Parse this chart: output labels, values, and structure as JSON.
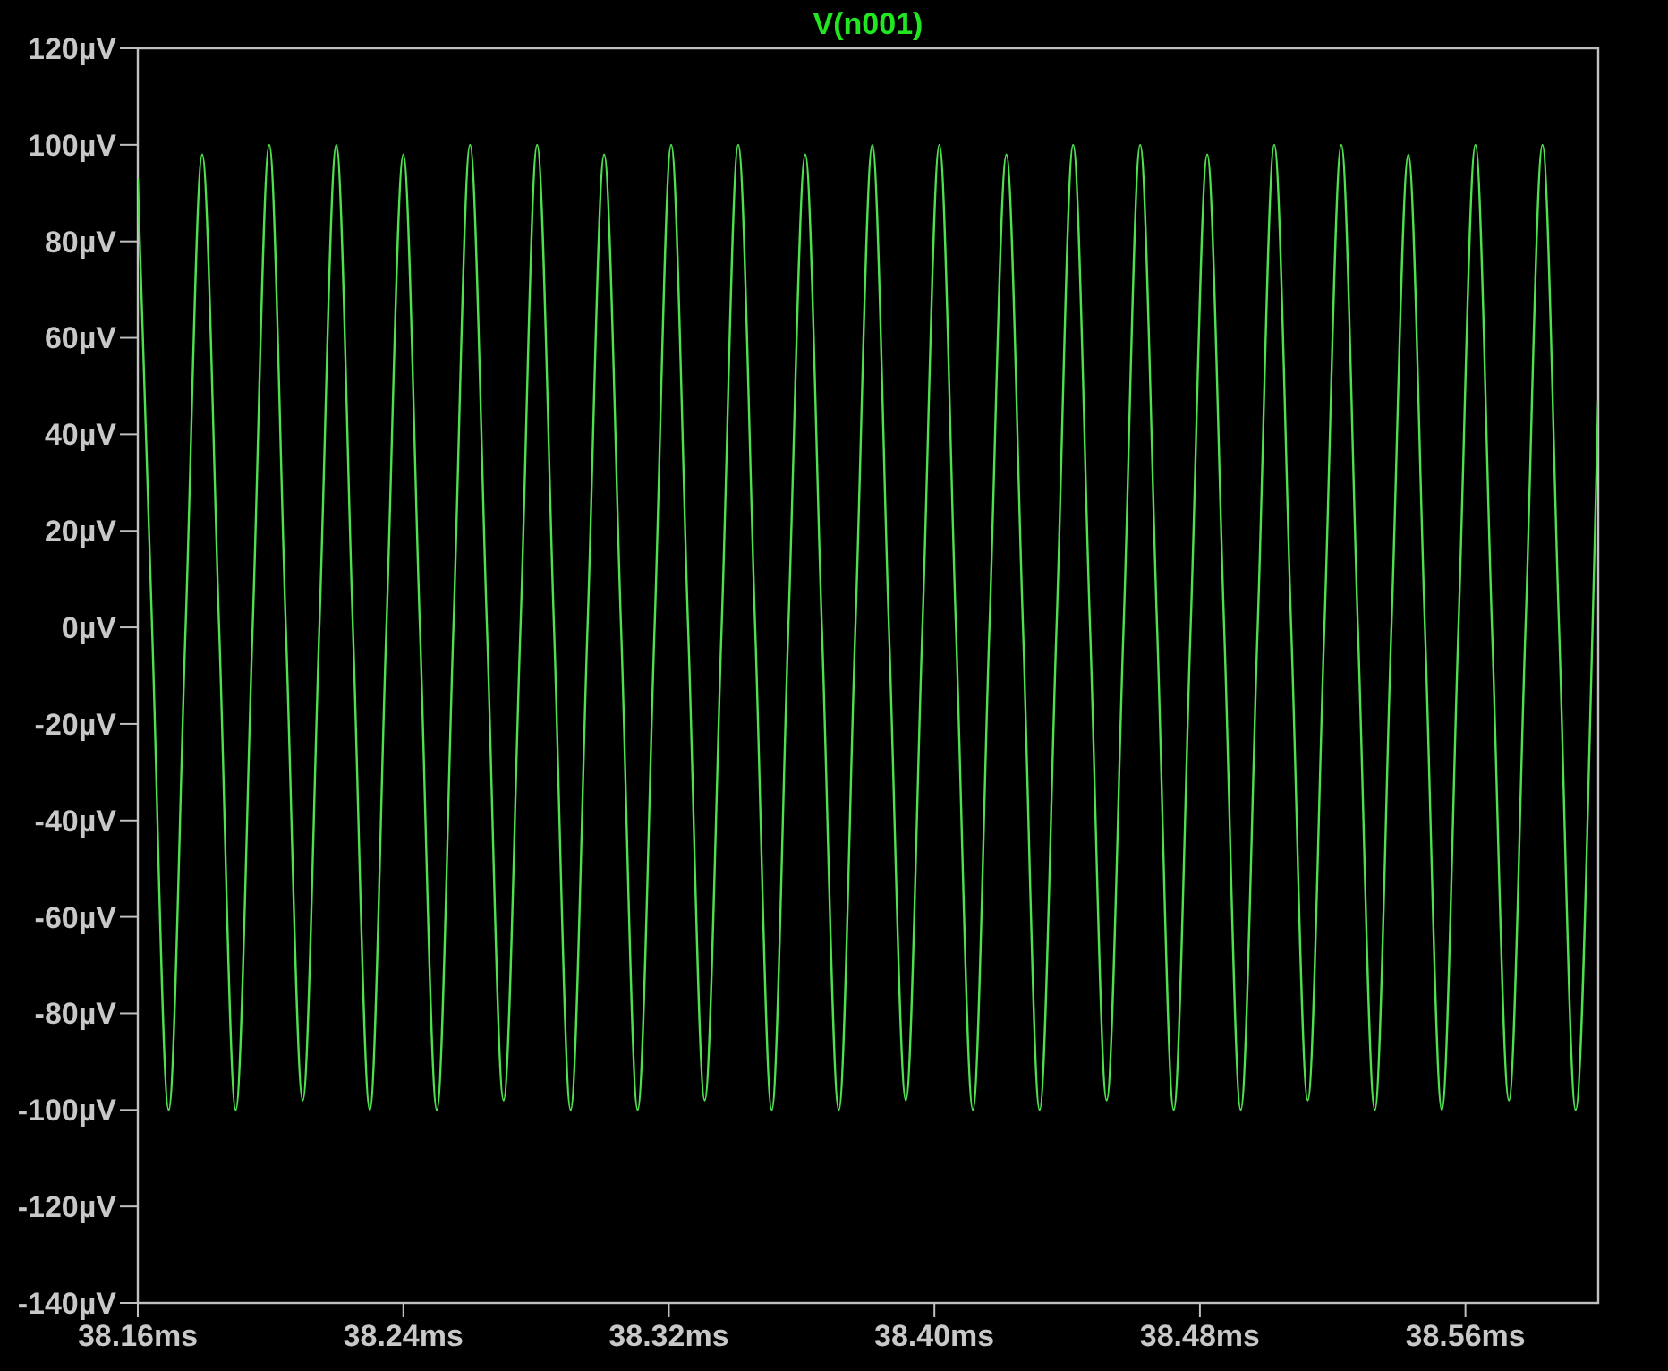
{
  "chart_data": {
    "type": "line",
    "title": "V(n001)",
    "xlim": [
      38.16,
      38.6
    ],
    "ylim": [
      -140,
      120
    ],
    "xticks": [
      {
        "value": 38.16,
        "label": "38.16ms"
      },
      {
        "value": 38.24,
        "label": "38.24ms"
      },
      {
        "value": 38.32,
        "label": "38.32ms"
      },
      {
        "value": 38.4,
        "label": "38.40ms"
      },
      {
        "value": 38.48,
        "label": "38.48ms"
      },
      {
        "value": 38.56,
        "label": "38.56ms"
      }
    ],
    "yticks": [
      {
        "value": -140,
        "label": "-140µV"
      },
      {
        "value": -120,
        "label": "-120µV"
      },
      {
        "value": -100,
        "label": "-100µV"
      },
      {
        "value": -80,
        "label": "-80µV"
      },
      {
        "value": -60,
        "label": "-60µV"
      },
      {
        "value": -40,
        "label": "-40µV"
      },
      {
        "value": -20,
        "label": "-20µV"
      },
      {
        "value": 0,
        "label": "0µV"
      },
      {
        "value": 20,
        "label": "20µV"
      },
      {
        "value": 40,
        "label": "40µV"
      },
      {
        "value": 60,
        "label": "60µV"
      },
      {
        "value": 80,
        "label": "80µV"
      },
      {
        "value": 100,
        "label": "100µV"
      },
      {
        "value": 120,
        "label": "120µV"
      }
    ],
    "grid": false,
    "marker": "none",
    "line_style": "solid",
    "series": [
      {
        "color": "#4fe04f",
        "x": [
          38.16,
          38.1643,
          38.1693,
          38.1744,
          38.1794,
          38.1845,
          38.1895,
          38.1946,
          38.1996,
          38.2046,
          38.2097,
          38.2147,
          38.2198,
          38.2248,
          38.2299,
          38.2349,
          38.24,
          38.245,
          38.2501,
          38.2551,
          38.2601,
          38.2652,
          38.2702,
          38.2753,
          38.2803,
          38.2854,
          38.2904,
          38.2955,
          38.3005,
          38.3056,
          38.3106,
          38.3157,
          38.3207,
          38.3258,
          38.3308,
          38.3359,
          38.3409,
          38.346,
          38.351,
          38.356,
          38.3611,
          38.3661,
          38.3712,
          38.3762,
          38.3813,
          38.3863,
          38.3914,
          38.3964,
          38.4015,
          38.4065,
          38.4116,
          38.4166,
          38.4217,
          38.4267,
          38.4317,
          38.4368,
          38.4418,
          38.4469,
          38.4519,
          38.457,
          38.462,
          38.4671,
          38.4721,
          38.4772,
          38.4822,
          38.4873,
          38.4923,
          38.4974,
          38.5024,
          38.5075,
          38.5125,
          38.5175,
          38.5226,
          38.5276,
          38.5327,
          38.5377,
          38.5428,
          38.5478,
          38.5529,
          38.5579,
          38.563,
          38.568,
          38.5731,
          38.5781,
          38.5832,
          38.5882,
          38.5932,
          38.5983,
          38.6
        ],
        "values": [
          93,
          0,
          -100,
          0,
          98,
          0,
          -100,
          0,
          100,
          0,
          -98,
          0,
          100,
          0,
          -100,
          0,
          98,
          0,
          -100,
          0,
          100,
          0,
          -98,
          0,
          100,
          0,
          -100,
          0,
          98,
          0,
          -100,
          0,
          100,
          0,
          -98,
          0,
          100,
          0,
          -100,
          0,
          98,
          0,
          -100,
          0,
          100,
          0,
          -98,
          0,
          100,
          0,
          -100,
          0,
          98,
          0,
          -100,
          0,
          100,
          0,
          -98,
          0,
          100,
          0,
          -100,
          0,
          98,
          0,
          -100,
          0,
          100,
          0,
          -98,
          0,
          100,
          0,
          -100,
          0,
          98,
          0,
          -100,
          0,
          100,
          0,
          -98,
          0,
          100,
          0,
          -100,
          0,
          47
        ]
      }
    ]
  }
}
